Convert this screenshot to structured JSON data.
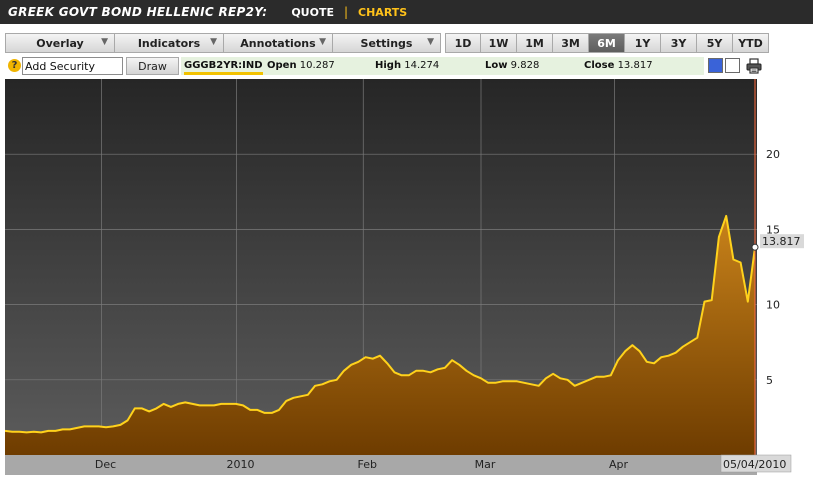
{
  "header": {
    "title": "GREEK GOVT BOND HELLENIC REP2Y:",
    "quote_link": "QUOTE",
    "charts_link": "CHARTS"
  },
  "toolbar": {
    "overlay_label": "Overlay",
    "indicators_label": "Indicators",
    "annotations_label": "Annotations",
    "settings_label": "Settings",
    "ranges": [
      "1D",
      "1W",
      "1M",
      "3M",
      "6M",
      "1Y",
      "3Y",
      "5Y",
      "YTD"
    ],
    "active_range": "6M"
  },
  "security": {
    "input_value": "Add Security",
    "draw_label": "Draw",
    "ticker": "GGGB2YR:IND",
    "open_label": "Open",
    "open_value": "10.287",
    "high_label": "High",
    "high_value": "14.274",
    "low_label": "Low",
    "low_value": "9.828",
    "close_label": "Close",
    "close_value": "13.817"
  },
  "colors": {
    "line": "#ffd21c",
    "fill_top": "#c8821a",
    "fill_bottom": "#6e3c00",
    "bg_top": "#262626",
    "bg_bottom": "#5c5c5c",
    "marker": "#ff6a3d"
  },
  "chart_data": {
    "type": "area",
    "title": "",
    "xlabel": "",
    "ylabel": "",
    "ylim": [
      0,
      25
    ],
    "yticks": [
      5,
      10,
      15,
      20
    ],
    "x_tick_labels": [
      "Dec",
      "2010",
      "Feb",
      "Mar",
      "Apr"
    ],
    "last_value_label": "13.817",
    "last_date_label": "05/04/2010",
    "grid": true,
    "series": [
      {
        "values": [
          1.6,
          1.55,
          1.55,
          1.5,
          1.55,
          1.5,
          1.6,
          1.6,
          1.7,
          1.7,
          1.8,
          1.9,
          1.9,
          1.9,
          1.85,
          1.9,
          2.0,
          2.3,
          3.1,
          3.1,
          2.9,
          3.1,
          3.4,
          3.2,
          3.4,
          3.5,
          3.4,
          3.3,
          3.3,
          3.3,
          3.4,
          3.4,
          3.4,
          3.3,
          3.0,
          3.0,
          2.8,
          2.8,
          3.0,
          3.6,
          3.8,
          3.9,
          4.0,
          4.6,
          4.7,
          4.9,
          5.0,
          5.6,
          6.0,
          6.2,
          6.5,
          6.4,
          6.6,
          6.1,
          5.5,
          5.3,
          5.3,
          5.6,
          5.6,
          5.5,
          5.7,
          5.8,
          6.3,
          6.0,
          5.6,
          5.3,
          5.1,
          4.8,
          4.8,
          4.9,
          4.9,
          4.9,
          4.8,
          4.7,
          4.6,
          5.1,
          5.4,
          5.1,
          5.0,
          4.6,
          4.8,
          5.0,
          5.2,
          5.2,
          5.3,
          6.3,
          6.9,
          7.3,
          6.9,
          6.2,
          6.1,
          6.5,
          6.6,
          6.8,
          7.2,
          7.5,
          7.8,
          10.2,
          10.3,
          14.5,
          15.9,
          13.0,
          12.8,
          10.2,
          13.817
        ]
      }
    ]
  }
}
